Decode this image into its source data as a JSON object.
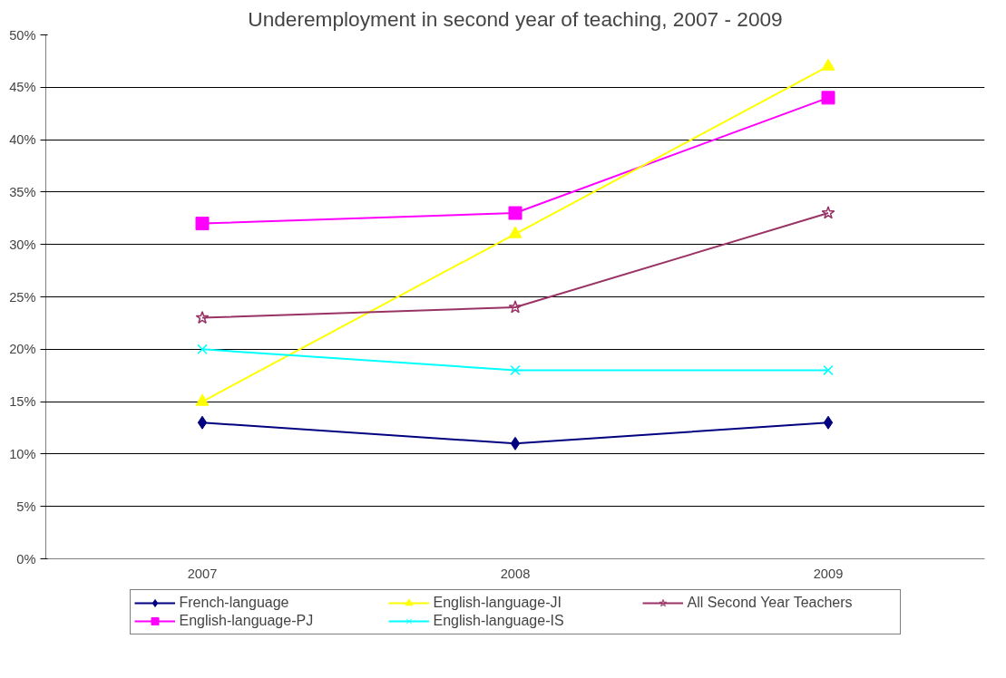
{
  "chart_data": {
    "type": "line",
    "title": "Underemployment in second year of teaching, 2007 - 2009",
    "categories": [
      "2007",
      "2008",
      "2009"
    ],
    "series": [
      {
        "name": "French-language",
        "color": "#000080",
        "marker": "diamond",
        "values": [
          13,
          11,
          13
        ]
      },
      {
        "name": "English-language-PJ",
        "color": "#ff00ff",
        "marker": "square",
        "values": [
          32,
          33,
          44
        ]
      },
      {
        "name": "English-language-JI",
        "color": "#ffff00",
        "marker": "triangle",
        "values": [
          15,
          31,
          47
        ]
      },
      {
        "name": "English-language-IS",
        "color": "#00ffff",
        "marker": "cross",
        "values": [
          20,
          18,
          18
        ]
      },
      {
        "name": "All Second Year Teachers",
        "color": "#993366",
        "marker": "star",
        "values": [
          23,
          24,
          33
        ]
      }
    ],
    "ylim": [
      0,
      50
    ],
    "yticks": [
      {
        "value": 0,
        "label": "0%"
      },
      {
        "value": 5,
        "label": "5%"
      },
      {
        "value": 10,
        "label": "10%"
      },
      {
        "value": 15,
        "label": "15%"
      },
      {
        "value": 20,
        "label": "20%"
      },
      {
        "value": 25,
        "label": "25%"
      },
      {
        "value": 30,
        "label": "30%"
      },
      {
        "value": 35,
        "label": "35%"
      },
      {
        "value": 40,
        "label": "40%"
      },
      {
        "value": 45,
        "label": "45%"
      },
      {
        "value": 50,
        "label": "50%"
      }
    ],
    "grid": "y",
    "legend": "bottom",
    "line_style": "solid"
  }
}
